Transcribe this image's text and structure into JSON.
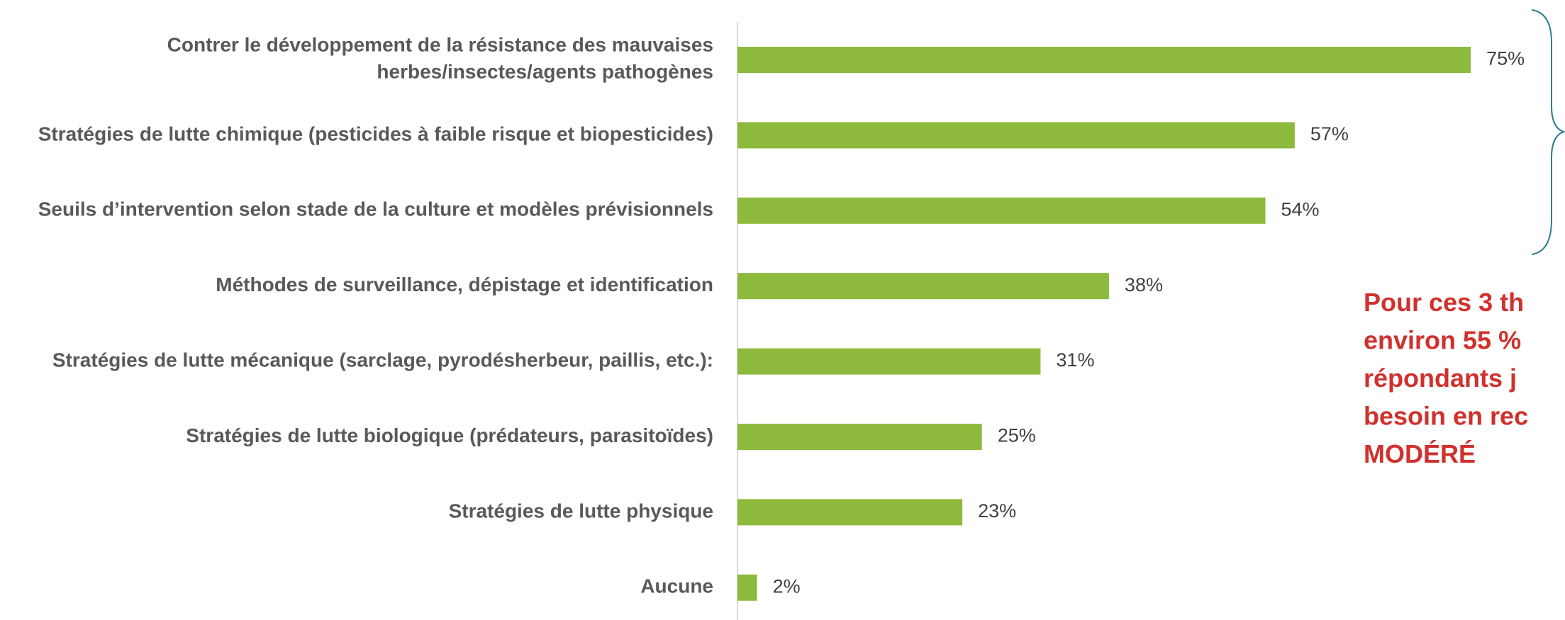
{
  "chart_data": {
    "type": "barh",
    "categories": [
      "Contrer le développement de la résistance des mauvaises herbes/insectes/agents pathogènes",
      "Stratégies de lutte chimique (pesticides à faible risque et biopesticides)",
      "Seuils d’intervention selon stade de la culture et modèles prévisionnels",
      "Méthodes de surveillance, dépistage et identification",
      "Stratégies de lutte mécanique (sarclage, pyrodésherbeur, paillis, etc.):",
      "Stratégies de lutte biologique (prédateurs, parasitoïdes)",
      "Stratégies de lutte physique",
      "Aucune"
    ],
    "values": [
      75,
      57,
      54,
      38,
      31,
      25,
      23,
      2
    ],
    "value_labels": [
      "75%",
      "57%",
      "54%",
      "38%",
      "31%",
      "25%",
      "23%",
      "2%"
    ],
    "color": "#8dba3c",
    "xlim": [
      0,
      80
    ],
    "annotation": [
      "Pour ces 3 th",
      "environ 55 %",
      "répondants j",
      "besoin en rec",
      "MODÉRÉ"
    ]
  }
}
